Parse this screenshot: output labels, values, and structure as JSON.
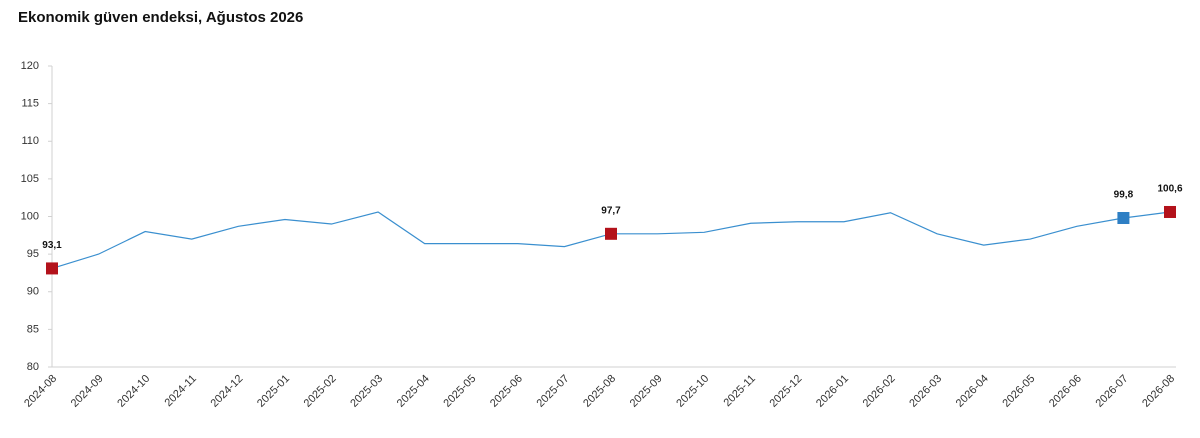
{
  "chart_data": {
    "type": "line",
    "title": "Ekonomik güven endeksi, Ağustos 2026",
    "categories": [
      "2024-08",
      "2024-09",
      "2024-10",
      "2024-11",
      "2024-12",
      "2025-01",
      "2025-02",
      "2025-03",
      "2025-04",
      "2025-05",
      "2025-06",
      "2025-07",
      "2025-08",
      "2025-09",
      "2025-10",
      "2025-11",
      "2025-12",
      "2026-01",
      "2026-02",
      "2026-03",
      "2026-04",
      "2026-05",
      "2026-06",
      "2026-07",
      "2026-08"
    ],
    "series": [
      {
        "name": "Ekonomik güven endeksi",
        "color": "#3a8fcf",
        "values": [
          93.1,
          95.0,
          98.0,
          97.0,
          98.7,
          99.6,
          99.0,
          100.6,
          96.4,
          96.4,
          96.4,
          96.0,
          97.7,
          97.7,
          97.9,
          99.1,
          99.3,
          99.3,
          100.5,
          97.7,
          96.2,
          97.0,
          98.7,
          99.8,
          100.6
        ],
        "value_labels": [
          "93,1",
          null,
          null,
          null,
          null,
          null,
          null,
          null,
          null,
          null,
          null,
          null,
          "97,7",
          null,
          null,
          null,
          null,
          null,
          null,
          null,
          null,
          null,
          null,
          "99,8",
          "100,6"
        ],
        "marker_colors": [
          "#b3121b",
          null,
          null,
          null,
          null,
          null,
          null,
          null,
          null,
          null,
          null,
          null,
          "#b3121b",
          null,
          null,
          null,
          null,
          null,
          null,
          null,
          null,
          null,
          null,
          "#2e7fc4",
          "#b3121b"
        ]
      }
    ],
    "ylim": [
      80,
      120
    ],
    "yticks": [
      80,
      85,
      90,
      95,
      100,
      105,
      110,
      115,
      120
    ],
    "grid": false
  }
}
